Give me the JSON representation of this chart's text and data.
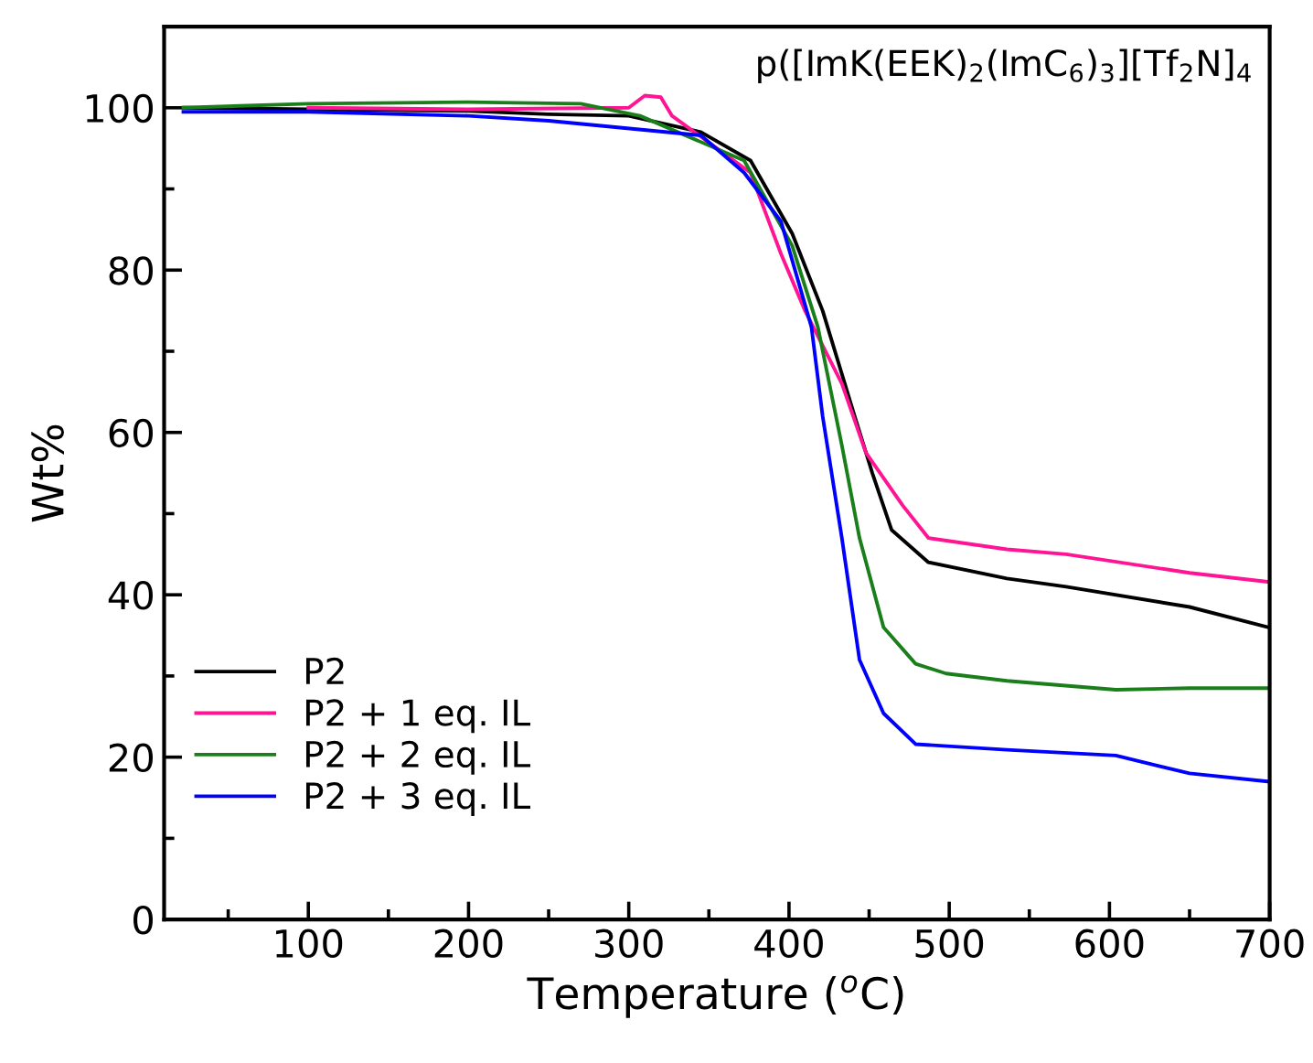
{
  "chart_data": {
    "type": "line",
    "xlabel": "Temperature ($^{o}$C)",
    "ylabel": "Wt%",
    "annotations": [
      "p([ImK(EEK)$_{2}$(ImC$_{6}$)$_{3}$][Tf$_{2}$N]$_{4}$"
    ],
    "xlim": [
      10,
      700
    ],
    "xticks": [
      100,
      200,
      300,
      400,
      500,
      600,
      700
    ],
    "ylim": [
      0,
      110
    ],
    "yticks": [
      0,
      20,
      40,
      60,
      80,
      100
    ],
    "grid": false,
    "legend": "bottom left",
    "line_style": "solid",
    "marker": "none",
    "series": [
      {
        "name": "P2",
        "color": "#000000",
        "x": [
          22,
          100,
          200,
          250,
          300,
          345,
          376,
          402,
          421,
          441,
          452,
          464,
          487,
          536,
          573,
          650,
          699
        ],
        "values": [
          100,
          99.8,
          99.6,
          99.2,
          99,
          97,
          93.5,
          84.5,
          75,
          62,
          55,
          48,
          44,
          42,
          41,
          38.5,
          36
        ]
      },
      {
        "name": "P2 + 1 eq. IL",
        "color": "#ff1493",
        "x": [
          100,
          200,
          300,
          310,
          320,
          327,
          376,
          395,
          410,
          433,
          448,
          471,
          487,
          536,
          573,
          650,
          699
        ],
        "values": [
          100,
          99.8,
          100,
          101.5,
          101.3,
          99,
          92,
          82,
          75,
          66,
          57.5,
          51,
          47,
          45.6,
          45,
          42.7,
          41.6
        ]
      },
      {
        "name": "P2 + 2 eq. IL",
        "color": "#1a7f1a",
        "x": [
          22,
          100,
          200,
          270,
          307,
          372,
          402,
          418,
          433,
          444,
          459,
          479,
          498,
          536,
          604,
          650,
          699
        ],
        "values": [
          100,
          100.5,
          100.7,
          100.5,
          99,
          93.5,
          83,
          73,
          58.4,
          47,
          36,
          31.5,
          30.3,
          29.4,
          28.3,
          28.5,
          28.5
        ]
      },
      {
        "name": "P2 + 3 eq. IL",
        "color": "#0000ff",
        "x": [
          22,
          100,
          200,
          250,
          345,
          372,
          395,
          414,
          421,
          433,
          444,
          459,
          479,
          536,
          604,
          650,
          699
        ],
        "values": [
          99.5,
          99.5,
          99,
          98.4,
          96.6,
          92,
          86,
          73,
          62,
          47,
          32,
          25.4,
          21.6,
          20.9,
          20.2,
          18,
          17
        ]
      }
    ]
  }
}
